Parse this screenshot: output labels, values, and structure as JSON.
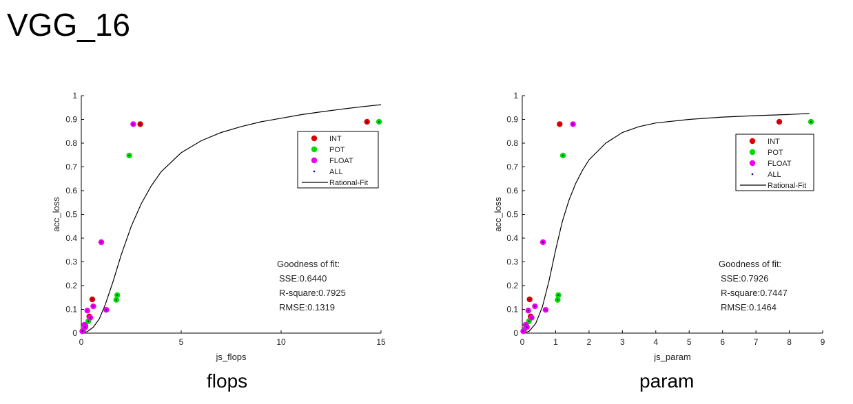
{
  "title": "VGG_16",
  "chart_data": [
    {
      "type": "scatter",
      "caption": "flops",
      "xlabel": "js_flops",
      "ylabel": "acc_loss",
      "xlim": [
        0,
        15
      ],
      "ylim": [
        0,
        1
      ],
      "xticks": [
        0,
        5,
        10,
        15
      ],
      "yticks": [
        0,
        0.1,
        0.2,
        0.3,
        0.4,
        0.5,
        0.6,
        0.7,
        0.8,
        0.9,
        1
      ],
      "legend": {
        "position": "top-right",
        "entries": [
          "INT",
          "POT",
          "FLOAT",
          "ALL",
          "Rational-Fit"
        ]
      },
      "series": [
        {
          "name": "INT",
          "color": "#e00000",
          "marker": "circle",
          "points": [
            [
              0.55,
              0.142
            ],
            [
              2.95,
              0.88
            ],
            [
              14.3,
              0.89
            ],
            [
              0.4,
              0.07
            ],
            [
              0.2,
              0.03
            ],
            [
              0.08,
              0.01
            ]
          ]
        },
        {
          "name": "POT",
          "color": "#00dd00",
          "marker": "circle",
          "points": [
            [
              1.8,
              0.16
            ],
            [
              1.75,
              0.14
            ],
            [
              2.4,
              0.748
            ],
            [
              14.9,
              0.89
            ],
            [
              0.35,
              0.05
            ],
            [
              0.1,
              0.015
            ]
          ]
        },
        {
          "name": "FLOAT",
          "color": "#ee00ee",
          "marker": "circle",
          "points": [
            [
              0.6,
              0.113
            ],
            [
              1.0,
              0.383
            ],
            [
              2.6,
              0.88
            ],
            [
              1.25,
              0.098
            ],
            [
              0.3,
              0.095
            ],
            [
              0.45,
              0.065
            ],
            [
              0.15,
              0.035
            ],
            [
              0.05,
              0.008
            ],
            [
              0.2,
              0.025
            ]
          ]
        },
        {
          "name": "ALL",
          "color": "#00008b",
          "marker": "dot"
        }
      ],
      "fit": {
        "name": "Rational-Fit",
        "color": "#000000",
        "points": [
          [
            0.0,
            0.0
          ],
          [
            0.3,
            0.006
          ],
          [
            0.6,
            0.025
          ],
          [
            0.9,
            0.06
          ],
          [
            1.2,
            0.12
          ],
          [
            1.6,
            0.22
          ],
          [
            2.0,
            0.33
          ],
          [
            2.5,
            0.45
          ],
          [
            3.0,
            0.545
          ],
          [
            3.5,
            0.62
          ],
          [
            4.0,
            0.68
          ],
          [
            5.0,
            0.76
          ],
          [
            6.0,
            0.81
          ],
          [
            7.0,
            0.845
          ],
          [
            8.0,
            0.87
          ],
          [
            9.0,
            0.89
          ],
          [
            10.0,
            0.905
          ],
          [
            11.0,
            0.92
          ],
          [
            12.0,
            0.932
          ],
          [
            13.0,
            0.943
          ],
          [
            14.0,
            0.953
          ],
          [
            15.0,
            0.962
          ]
        ]
      },
      "goodness": {
        "heading": "Goodness of fit:",
        "sse": "SSE:0.6440",
        "rsquare": "R-square:0.7925",
        "rmse": "RMSE:0.1319"
      }
    },
    {
      "type": "scatter",
      "caption": "param",
      "xlabel": "js_param",
      "ylabel": "acc_loss",
      "xlim": [
        0,
        9
      ],
      "ylim": [
        0,
        1
      ],
      "xticks": [
        0,
        1,
        2,
        3,
        4,
        5,
        6,
        7,
        8,
        9
      ],
      "yticks": [
        0,
        0.1,
        0.2,
        0.3,
        0.4,
        0.5,
        0.6,
        0.7,
        0.8,
        0.9,
        1
      ],
      "legend": {
        "position": "top-right",
        "entries": [
          "INT",
          "POT",
          "FLOAT",
          "ALL",
          "Rational-Fit"
        ]
      },
      "series": [
        {
          "name": "INT",
          "color": "#e00000",
          "marker": "circle",
          "points": [
            [
              0.22,
              0.142
            ],
            [
              1.12,
              0.88
            ],
            [
              7.7,
              0.89
            ],
            [
              0.25,
              0.07
            ],
            [
              0.12,
              0.03
            ],
            [
              0.04,
              0.01
            ]
          ]
        },
        {
          "name": "POT",
          "color": "#00dd00",
          "marker": "circle",
          "points": [
            [
              1.08,
              0.16
            ],
            [
              1.06,
              0.14
            ],
            [
              1.22,
              0.748
            ],
            [
              8.65,
              0.89
            ],
            [
              0.2,
              0.05
            ],
            [
              0.06,
              0.015
            ]
          ]
        },
        {
          "name": "FLOAT",
          "color": "#ee00ee",
          "marker": "circle",
          "points": [
            [
              0.38,
              0.113
            ],
            [
              0.62,
              0.383
            ],
            [
              1.52,
              0.88
            ],
            [
              0.7,
              0.098
            ],
            [
              0.18,
              0.095
            ],
            [
              0.28,
              0.065
            ],
            [
              0.1,
              0.035
            ],
            [
              0.03,
              0.008
            ],
            [
              0.14,
              0.025
            ]
          ]
        },
        {
          "name": "ALL",
          "color": "#00008b",
          "marker": "dot"
        }
      ],
      "fit": {
        "name": "Rational-Fit",
        "color": "#000000",
        "points": [
          [
            0.0,
            0.0
          ],
          [
            0.2,
            0.007
          ],
          [
            0.4,
            0.04
          ],
          [
            0.6,
            0.11
          ],
          [
            0.8,
            0.22
          ],
          [
            1.0,
            0.35
          ],
          [
            1.2,
            0.47
          ],
          [
            1.4,
            0.56
          ],
          [
            1.6,
            0.63
          ],
          [
            1.8,
            0.685
          ],
          [
            2.0,
            0.73
          ],
          [
            2.5,
            0.8
          ],
          [
            3.0,
            0.845
          ],
          [
            3.5,
            0.87
          ],
          [
            4.0,
            0.885
          ],
          [
            5.0,
            0.9
          ],
          [
            6.0,
            0.91
          ],
          [
            7.0,
            0.916
          ],
          [
            8.0,
            0.921
          ],
          [
            8.6,
            0.925
          ]
        ]
      },
      "goodness": {
        "heading": "Goodness of fit:",
        "sse": "SSE:0.7926",
        "rsquare": "R-square:0.7447",
        "rmse": "RMSE:0.1464"
      }
    }
  ]
}
